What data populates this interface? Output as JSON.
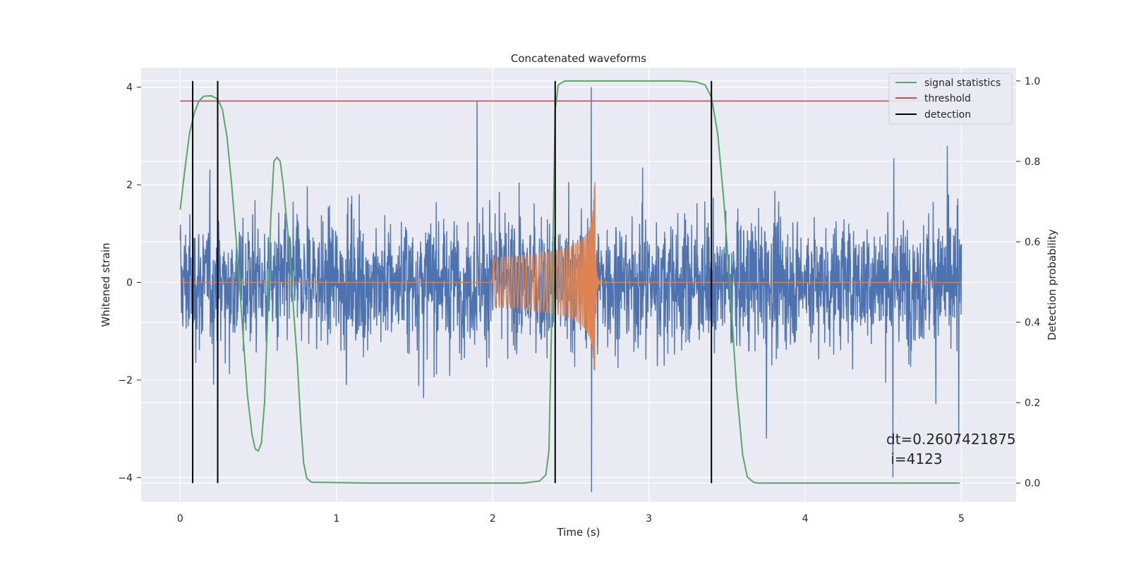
{
  "chart_data": {
    "type": "line",
    "title": "Concatenated waveforms",
    "xlabel": "Time (s)",
    "ylabel": "Whitened strain",
    "y2label": "Detection probability",
    "xlim": [
      -0.25,
      5.35
    ],
    "ylim": [
      -4.5,
      4.4
    ],
    "y2lim": [
      -0.047,
      1.033
    ],
    "xticks": [
      0,
      1,
      2,
      3,
      4,
      5
    ],
    "yticks": [
      -4,
      -2,
      0,
      2,
      4
    ],
    "yticklabels": [
      "−4",
      "−2",
      "0",
      "2",
      "4"
    ],
    "y2ticks": [
      0.0,
      0.2,
      0.4,
      0.6,
      0.8,
      1.0
    ],
    "y2ticklabels": [
      "0.0",
      "0.2",
      "0.4",
      "0.6",
      "0.8",
      "1.0"
    ],
    "grid": true,
    "legend_position": "top-right",
    "series": [
      {
        "description": "whitened strain noise (dense, amplitude approx ±1.5, occasional spikes to approx ±3.5; max 4.0 at t=2.63, min −4.3 at t=2.63)",
        "color": "#4c72b0",
        "axis": "left",
        "x_range": [
          0,
          5
        ],
        "typical_amplitude": 1.2,
        "notable_peaks": [
          [
            1.9,
            3.7
          ],
          [
            2.63,
            4.0
          ],
          [
            2.63,
            -4.3
          ],
          [
            4.56,
            -4.0
          ],
          [
            4.98,
            -3.3
          ],
          [
            4.91,
            2.8
          ],
          [
            3.75,
            -3.2
          ]
        ]
      },
      {
        "description": "injected chirp waveform, zero outside [2.0, 2.66]",
        "color": "#dd8452",
        "axis": "left",
        "x_range": [
          0,
          5
        ],
        "chirp_start": 2.0,
        "chirp_merger": 2.655,
        "amp_start": 0.5,
        "amp_peak_pos": 2.3,
        "amp_peak_neg": -1.8
      },
      {
        "name": "signal statistics",
        "color": "#55a868",
        "axis": "right",
        "points": [
          [
            0.0,
            0.68
          ],
          [
            0.03,
            0.78
          ],
          [
            0.06,
            0.87
          ],
          [
            0.09,
            0.92
          ],
          [
            0.12,
            0.95
          ],
          [
            0.15,
            0.962
          ],
          [
            0.2,
            0.963
          ],
          [
            0.24,
            0.955
          ],
          [
            0.27,
            0.93
          ],
          [
            0.3,
            0.86
          ],
          [
            0.33,
            0.74
          ],
          [
            0.37,
            0.55
          ],
          [
            0.4,
            0.38
          ],
          [
            0.43,
            0.22
          ],
          [
            0.46,
            0.12
          ],
          [
            0.48,
            0.085
          ],
          [
            0.5,
            0.08
          ],
          [
            0.52,
            0.1
          ],
          [
            0.54,
            0.2
          ],
          [
            0.56,
            0.42
          ],
          [
            0.58,
            0.66
          ],
          [
            0.6,
            0.8
          ],
          [
            0.62,
            0.81
          ],
          [
            0.64,
            0.8
          ],
          [
            0.66,
            0.74
          ],
          [
            0.69,
            0.62
          ],
          [
            0.72,
            0.46
          ],
          [
            0.75,
            0.3
          ],
          [
            0.77,
            0.16
          ],
          [
            0.79,
            0.05
          ],
          [
            0.81,
            0.012
          ],
          [
            0.84,
            0.002
          ],
          [
            1.2,
            0.0
          ],
          [
            2.0,
            0.0
          ],
          [
            2.2,
            0.0
          ],
          [
            2.3,
            0.005
          ],
          [
            2.34,
            0.02
          ],
          [
            2.36,
            0.08
          ],
          [
            2.38,
            0.45
          ],
          [
            2.4,
            0.93
          ],
          [
            2.42,
            0.99
          ],
          [
            2.46,
            1.0
          ],
          [
            3.2,
            1.0
          ],
          [
            3.3,
            0.998
          ],
          [
            3.36,
            0.99
          ],
          [
            3.4,
            0.96
          ],
          [
            3.44,
            0.87
          ],
          [
            3.48,
            0.7
          ],
          [
            3.52,
            0.48
          ],
          [
            3.56,
            0.24
          ],
          [
            3.6,
            0.07
          ],
          [
            3.63,
            0.015
          ],
          [
            3.67,
            0.002
          ],
          [
            3.7,
            0.0
          ],
          [
            4.99,
            0.0
          ]
        ]
      },
      {
        "name": "threshold",
        "color": "#c44e52",
        "axis": "right",
        "y": 0.95,
        "x_range": [
          0,
          5.1
        ]
      },
      {
        "name": "detection",
        "color": "#000000",
        "axis": "right",
        "x_values": [
          0.08,
          0.24,
          2.4,
          3.4
        ],
        "y_range": [
          0.0,
          1.0
        ]
      }
    ],
    "annotation": {
      "line1": "dt=0.2607421875",
      "line2": " i=4123"
    }
  }
}
